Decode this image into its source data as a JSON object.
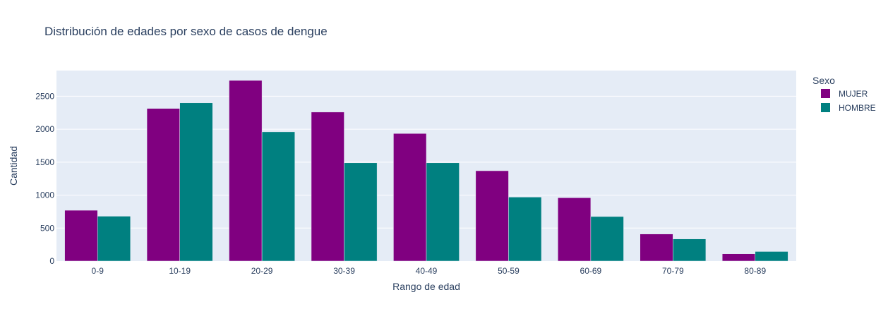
{
  "chart_data": {
    "type": "bar",
    "title": "Distribución de edades por sexo de casos de dengue",
    "xlabel": "Rango de edad",
    "ylabel": "Cantidad",
    "categories": [
      "0-9",
      "10-19",
      "20-29",
      "30-39",
      "40-49",
      "50-59",
      "60-69",
      "70-79",
      "80-89"
    ],
    "series": [
      {
        "name": "MUJER",
        "color": "#800080",
        "values": [
          770,
          2315,
          2740,
          2260,
          1935,
          1370,
          960,
          410,
          110
        ]
      },
      {
        "name": "HOMBRE",
        "color": "#008080",
        "values": [
          680,
          2400,
          1960,
          1490,
          1490,
          970,
          675,
          335,
          145
        ]
      }
    ],
    "ylim": [
      0,
      2890
    ],
    "yticks": [
      0,
      500,
      1000,
      1500,
      2000,
      2500
    ],
    "grid": true,
    "legend": {
      "title": "Sexo",
      "placement": "right"
    },
    "background_color": "#e5ecf6",
    "grid_color": "#ffffff",
    "text_color": "#2a3f5f"
  }
}
